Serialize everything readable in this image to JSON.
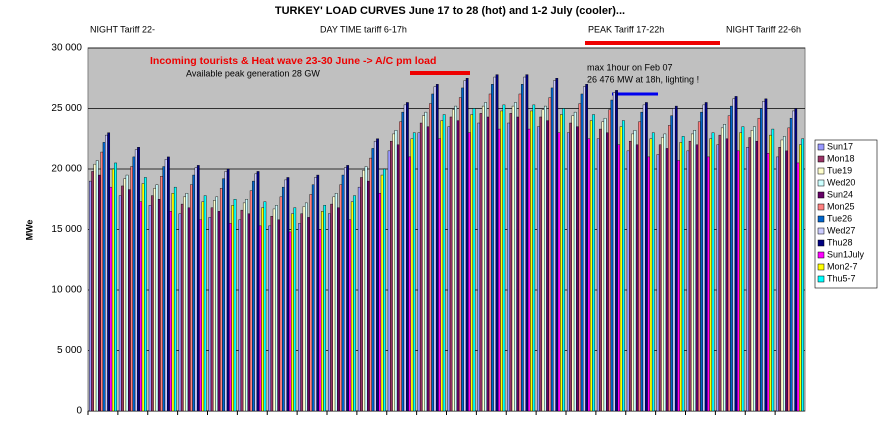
{
  "chart_data": {
    "type": "bar",
    "title": "TURKEY' LOAD CURVES June 17 to 28 (hot) and 1-2 July (cooler)...",
    "y_label": "MWe",
    "annotations": [
      "NIGHT Tariff 22-",
      "DAY TIME tariff 6-17h",
      "PEAK Tariff  17-22h",
      "NIGHT Tariff 22-6h",
      "Incoming tourists & Heat wave 23-30  June -> A/C pm load",
      "Available peak generation 28 GW",
      "max 1hour on Feb 07",
      "26 476 MW at 18h, lighting !"
    ],
    "categories": [
      null,
      null,
      null,
      null,
      null,
      null,
      null,
      null,
      null,
      null,
      null,
      null,
      null,
      null,
      null,
      null,
      null,
      null,
      null,
      null,
      null,
      null,
      null,
      null
    ],
    "ylim": [
      0,
      30000
    ],
    "yticks": [
      {
        "value": 0,
        "label": "0"
      },
      {
        "value": 5000,
        "label": "5 000"
      },
      {
        "value": 10000,
        "label": "10 000"
      },
      {
        "value": 15000,
        "label": "15 000"
      },
      {
        "value": 20000,
        "label": "20 000"
      },
      {
        "value": 25000,
        "label": "25 000"
      },
      {
        "value": 30000,
        "label": "30 000"
      }
    ],
    "grid": true,
    "legend": "right",
    "series": [
      {
        "name": "Sun17",
        "color": "#9999ff",
        "values": [
          19000,
          17800,
          17000,
          16300,
          16000,
          15800,
          15300,
          15500,
          16300,
          18500,
          21500,
          23000,
          23500,
          23800,
          23800,
          23500,
          23000,
          22500,
          21500,
          21200,
          21500,
          22000,
          21800,
          21000
        ]
      },
      {
        "name": "Mon18",
        "color": "#993366",
        "values": [
          19800,
          18600,
          17800,
          17100,
          16800,
          16600,
          16100,
          16300,
          17100,
          19300,
          22300,
          23800,
          24300,
          24600,
          24600,
          24300,
          23800,
          23300,
          22300,
          22000,
          22300,
          22800,
          22600,
          21800
        ]
      },
      {
        "name": "Tue19",
        "color": "#ffffcc",
        "values": [
          20400,
          19200,
          18400,
          17700,
          17400,
          17200,
          16700,
          16900,
          17700,
          19900,
          22900,
          24400,
          24900,
          25200,
          25200,
          24900,
          24400,
          23900,
          22900,
          22600,
          22900,
          23400,
          23200,
          22400
        ]
      },
      {
        "name": "Wed20",
        "color": "#ccffff",
        "values": [
          20700,
          19500,
          18700,
          18000,
          17700,
          17500,
          17000,
          17200,
          18000,
          20200,
          23200,
          24700,
          25200,
          25500,
          25500,
          25200,
          24700,
          24200,
          23200,
          22900,
          23200,
          23700,
          23500,
          22700
        ]
      },
      {
        "name": "Sun24",
        "color": "#660066",
        "values": [
          19500,
          18300,
          17500,
          16800,
          16500,
          16300,
          15800,
          16000,
          16800,
          19000,
          22000,
          23500,
          24000,
          24300,
          24300,
          24000,
          23500,
          23000,
          22000,
          21700,
          22000,
          22500,
          22300,
          21500
        ]
      },
      {
        "name": "Mon25",
        "color": "#ff8080",
        "values": [
          21400,
          20200,
          19400,
          18700,
          18400,
          18200,
          17700,
          17900,
          18700,
          20900,
          23900,
          25400,
          25900,
          26200,
          26200,
          25900,
          25400,
          24900,
          23900,
          23600,
          23900,
          24400,
          24200,
          23400
        ]
      },
      {
        "name": "Tue26",
        "color": "#0066cc",
        "values": [
          22200,
          21000,
          20200,
          19500,
          19200,
          19000,
          18500,
          18700,
          19500,
          21700,
          24700,
          26200,
          26700,
          27000,
          27000,
          26700,
          26200,
          25700,
          24700,
          24400,
          24700,
          25200,
          25000,
          24200
        ]
      },
      {
        "name": "Wed27",
        "color": "#ccccff",
        "values": [
          22800,
          21600,
          20800,
          20100,
          19800,
          19600,
          19100,
          19300,
          20100,
          22300,
          25300,
          26800,
          27300,
          27600,
          27600,
          27300,
          26800,
          26300,
          25300,
          25000,
          25300,
          25800,
          25600,
          24800
        ]
      },
      {
        "name": "Thu28",
        "color": "#000080",
        "values": [
          23000,
          21800,
          21000,
          20300,
          20000,
          19800,
          19300,
          19500,
          20300,
          22500,
          25500,
          27000,
          27500,
          27800,
          27800,
          27500,
          27000,
          26500,
          25500,
          25200,
          25500,
          26000,
          25800,
          25000
        ]
      },
      {
        "name": "Sun1July",
        "color": "#ff00ff",
        "values": [
          18500,
          17300,
          16500,
          15800,
          15500,
          15300,
          14800,
          15000,
          15800,
          18000,
          21000,
          22500,
          23000,
          23300,
          23300,
          23000,
          22500,
          22000,
          21000,
          20700,
          21000,
          21500,
          21300,
          20500
        ]
      },
      {
        "name": "Mon2-7",
        "color": "#ffff00",
        "values": [
          20000,
          18800,
          18000,
          17300,
          17000,
          16800,
          16300,
          16500,
          17300,
          19500,
          22500,
          24000,
          24500,
          24800,
          24800,
          24500,
          24000,
          23500,
          22500,
          22200,
          22500,
          23000,
          22800,
          22000
        ]
      },
      {
        "name": "Thu5-7",
        "color": "#00ffff",
        "values": [
          20500,
          19300,
          18500,
          17800,
          17500,
          17300,
          16800,
          17000,
          17800,
          20000,
          23000,
          24500,
          25000,
          25300,
          25300,
          25000,
          24500,
          24000,
          23000,
          22700,
          23000,
          23500,
          23300,
          22500
        ]
      }
    ]
  }
}
